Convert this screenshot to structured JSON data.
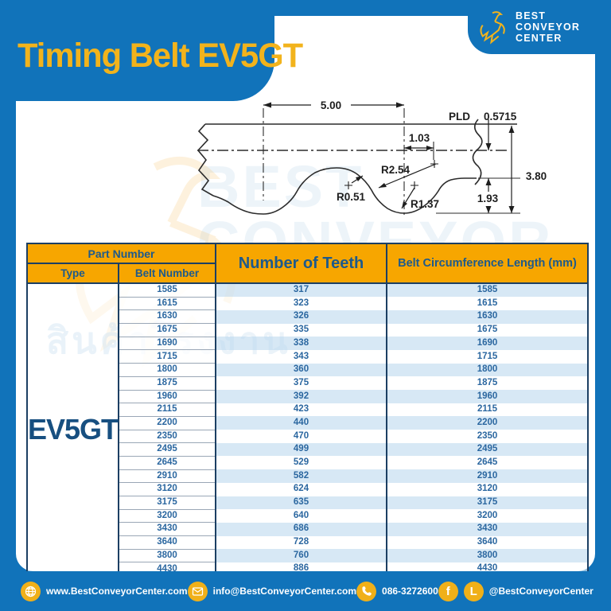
{
  "page": {
    "title": "Timing Belt EV5GT"
  },
  "logo": {
    "line1": "BEST",
    "line2": "CONVEYOR",
    "line3": "CENTER"
  },
  "watermark": {
    "brand_line1": "BEST",
    "brand_line2": "CONVEYOR",
    "thai_text": "สินค้าโรงงาน"
  },
  "diagram": {
    "dims": {
      "pitch": "5.00",
      "tip_width": "1.03",
      "pld_label": "PLD",
      "pld_value": "0.5715",
      "radius_land": "R2.54",
      "radius_crest": "R0.51",
      "radius_root": "R1.37",
      "belt_height": "3.80",
      "tooth_depth": "1.93"
    }
  },
  "table": {
    "headers": {
      "part_number": "Part Number",
      "type": "Type",
      "belt_number": "Belt Number",
      "teeth": "Number of Teeth",
      "circumference": "Belt Circumference Length (mm)"
    },
    "type_value": "EV5GT",
    "rows": [
      {
        "belt": "1585",
        "teeth": "317",
        "length": "1585"
      },
      {
        "belt": "1615",
        "teeth": "323",
        "length": "1615"
      },
      {
        "belt": "1630",
        "teeth": "326",
        "length": "1630"
      },
      {
        "belt": "1675",
        "teeth": "335",
        "length": "1675"
      },
      {
        "belt": "1690",
        "teeth": "338",
        "length": "1690"
      },
      {
        "belt": "1715",
        "teeth": "343",
        "length": "1715"
      },
      {
        "belt": "1800",
        "teeth": "360",
        "length": "1800"
      },
      {
        "belt": "1875",
        "teeth": "375",
        "length": "1875"
      },
      {
        "belt": "1960",
        "teeth": "392",
        "length": "1960"
      },
      {
        "belt": "2115",
        "teeth": "423",
        "length": "2115"
      },
      {
        "belt": "2200",
        "teeth": "440",
        "length": "2200"
      },
      {
        "belt": "2350",
        "teeth": "470",
        "length": "2350"
      },
      {
        "belt": "2495",
        "teeth": "499",
        "length": "2495"
      },
      {
        "belt": "2645",
        "teeth": "529",
        "length": "2645"
      },
      {
        "belt": "2910",
        "teeth": "582",
        "length": "2910"
      },
      {
        "belt": "3120",
        "teeth": "624",
        "length": "3120"
      },
      {
        "belt": "3175",
        "teeth": "635",
        "length": "3175"
      },
      {
        "belt": "3200",
        "teeth": "640",
        "length": "3200"
      },
      {
        "belt": "3430",
        "teeth": "686",
        "length": "3430"
      },
      {
        "belt": "3640",
        "teeth": "728",
        "length": "3640"
      },
      {
        "belt": "3800",
        "teeth": "760",
        "length": "3800"
      },
      {
        "belt": "4430",
        "teeth": "886",
        "length": "4430"
      }
    ]
  },
  "footer": {
    "website": "www.BestConveyorCenter.com",
    "email": "info@BestConveyorCenter.com",
    "phone": "086-3272600",
    "social": "@BestConveyorCenter"
  },
  "colors": {
    "brand_blue": "#1173BA",
    "brand_yellow": "#F2B31C",
    "header_amber": "#F7A600",
    "table_navy": "#1C3F63",
    "row_stripe": "#CDE2F3",
    "text_blue": "#2B67A0"
  }
}
